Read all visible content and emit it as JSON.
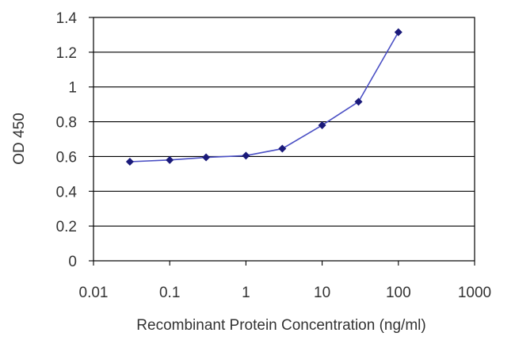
{
  "chart_data": {
    "type": "line",
    "title": "",
    "xlabel": "Recombinant Protein Concentration (ng/ml)",
    "ylabel": "OD 450",
    "x_scale": "log",
    "xlim": [
      0.01,
      1000
    ],
    "ylim": [
      0,
      1.4
    ],
    "x_ticks": [
      0.01,
      0.1,
      1,
      10,
      100,
      1000
    ],
    "x_tick_labels": [
      "0.01",
      "0.1",
      "1",
      "10",
      "100",
      "1000"
    ],
    "y_ticks": [
      0,
      0.2,
      0.4,
      0.6,
      0.8,
      1,
      1.2,
      1.4
    ],
    "y_tick_labels": [
      "0",
      "0.2",
      "0.4",
      "0.6",
      "0.8",
      "1",
      "1.2",
      "1.4"
    ],
    "grid": "horizontal",
    "legend": "none",
    "series": [
      {
        "x": [
          0.03,
          0.1,
          0.3,
          1,
          3,
          10,
          30,
          100
        ],
        "y": [
          0.57,
          0.58,
          0.595,
          0.605,
          0.645,
          0.78,
          0.915,
          1.315
        ]
      }
    ],
    "colors": {
      "line": "#4a4fc4",
      "marker": "#1a1a7a",
      "grid": "#000000",
      "text": "#333333"
    }
  }
}
